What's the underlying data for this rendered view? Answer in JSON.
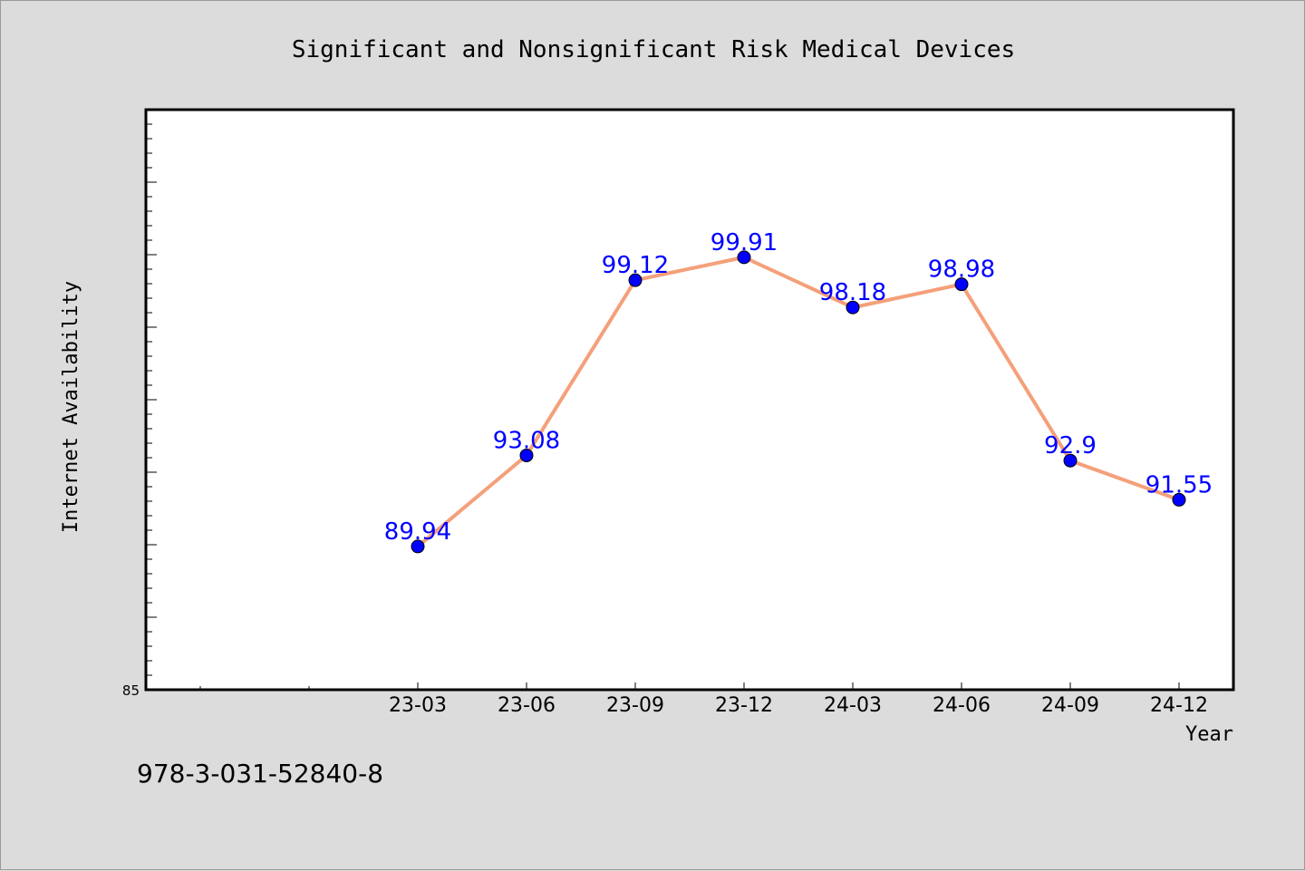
{
  "chart_data": {
    "type": "line",
    "title": "Significant and Nonsignificant Risk Medical Devices",
    "xlabel": "Year",
    "ylabel": "Internet Availability",
    "categories": [
      "23-03",
      "23-06",
      "23-09",
      "23-12",
      "24-03",
      "24-06",
      "24-09",
      "24-12"
    ],
    "series": [
      {
        "values": [
          89.94,
          93.08,
          99.12,
          99.91,
          98.18,
          98.98,
          92.9,
          91.55
        ],
        "line_color": "#f4a07a",
        "marker_color": "#0000ff"
      }
    ],
    "ylim": [
      85,
      105
    ],
    "y_tick_labels": [
      "85"
    ],
    "grid": false,
    "legend": "none"
  },
  "footer": {
    "isbn": "978-3-031-52840-8"
  }
}
